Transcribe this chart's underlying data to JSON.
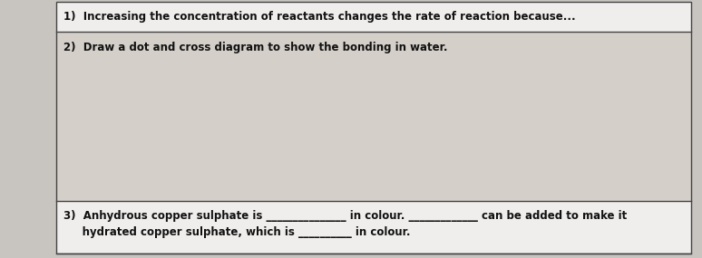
{
  "bg_color": "#c8c4c0",
  "section2_bg": "#d4cfc9",
  "white_bg": "#f0eeec",
  "border_color": "#444444",
  "text_color": "#111111",
  "line1": "1)  Increasing the concentration of reactants changes the rate of reaction because...",
  "line2": "2)  Draw a dot and cross diagram to show the bonding in water.",
  "line3a": "3)  Anhydrous copper sulphate is _______________ in colour. _____________ can be added to make it",
  "line3b": "     hydrated copper sulphate, which is __________ in colour.",
  "fig_width": 7.74,
  "fig_height": 2.85,
  "dpi": 100,
  "font_size": 8.5
}
